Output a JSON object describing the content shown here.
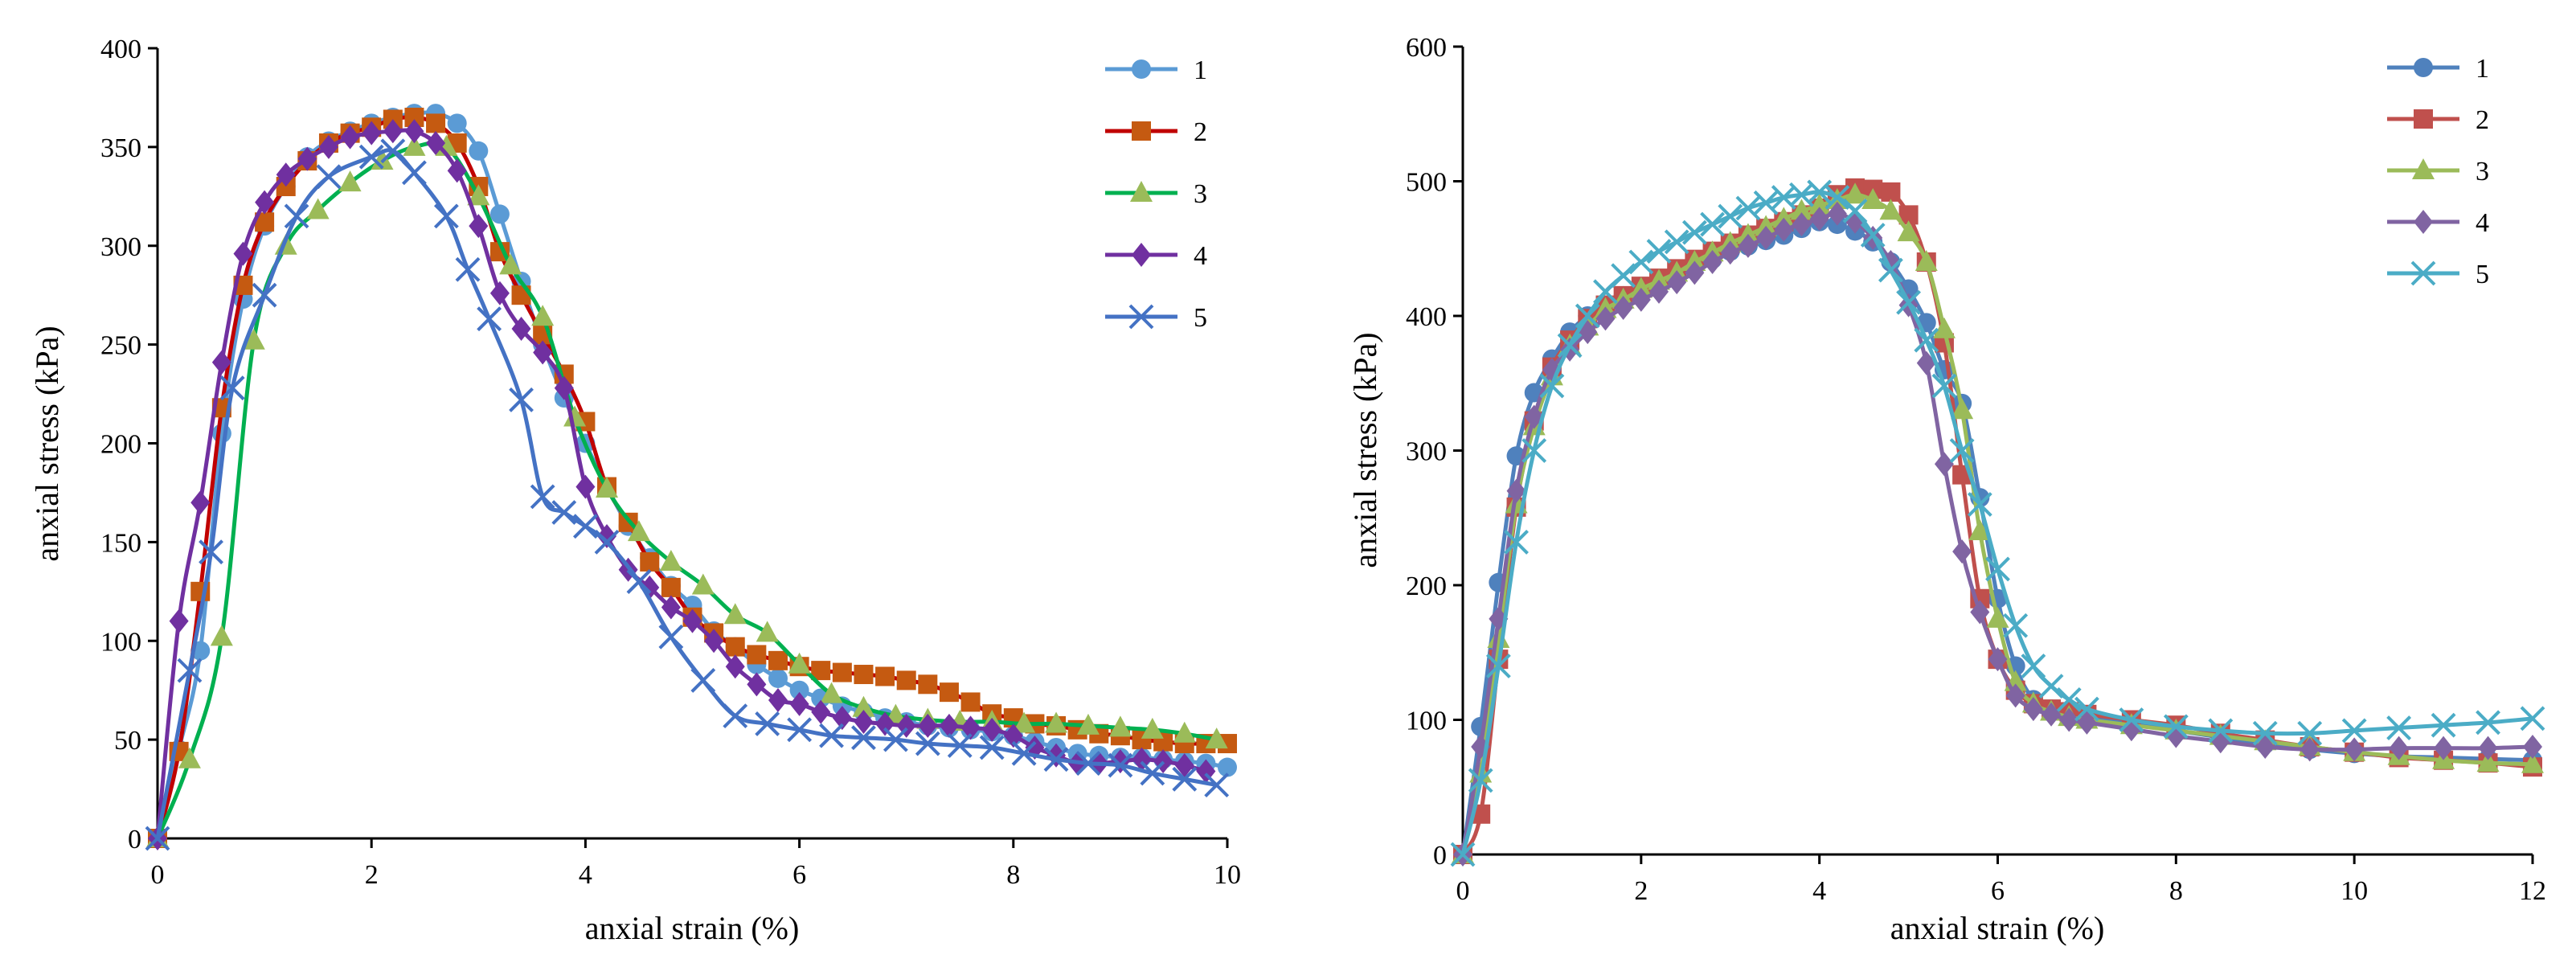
{
  "chart_data": [
    {
      "type": "line",
      "title": "",
      "xlabel": "anxial strain (%)",
      "ylabel": "anxial stress (kPa)",
      "xlim": [
        0,
        10
      ],
      "ylim": [
        0,
        400
      ],
      "xticks": [
        0,
        2,
        4,
        6,
        8,
        10
      ],
      "yticks": [
        0,
        50,
        100,
        150,
        200,
        250,
        300,
        350,
        400
      ],
      "legend_position": "top-right",
      "series": [
        {
          "name": "1",
          "color": "#5b9bd5",
          "marker": "circle",
          "x": [
            0,
            0.2,
            0.4,
            0.6,
            0.8,
            1.0,
            1.2,
            1.4,
            1.6,
            1.8,
            2.0,
            2.2,
            2.4,
            2.6,
            2.8,
            3.0,
            3.2,
            3.4,
            3.6,
            3.8,
            4.0,
            4.2,
            4.4,
            4.6,
            4.8,
            5.0,
            5.2,
            5.4,
            5.6,
            5.8,
            6.0,
            6.2,
            6.4,
            6.6,
            6.8,
            7.0,
            7.2,
            7.4,
            7.6,
            7.8,
            8.0,
            8.2,
            8.4,
            8.6,
            8.8,
            9.0,
            9.2,
            9.4,
            9.6,
            9.8,
            10.0
          ],
          "y": [
            0,
            45,
            95,
            205,
            273,
            310,
            330,
            345,
            353,
            358,
            362,
            365,
            367,
            367,
            362,
            348,
            316,
            282,
            250,
            223,
            200,
            178,
            158,
            142,
            128,
            118,
            105,
            97,
            88,
            81,
            75,
            71,
            67,
            64,
            61,
            59,
            57,
            56,
            55,
            54,
            52,
            49,
            46,
            43,
            42,
            41,
            41,
            40,
            39,
            38,
            36
          ]
        },
        {
          "name": "2",
          "color": "#c55a11",
          "line_color": "#c00000",
          "marker": "square",
          "x": [
            0,
            0.2,
            0.4,
            0.6,
            0.8,
            1.0,
            1.2,
            1.4,
            1.6,
            1.8,
            2.0,
            2.2,
            2.4,
            2.6,
            2.8,
            3.0,
            3.2,
            3.4,
            3.6,
            3.8,
            4.0,
            4.2,
            4.4,
            4.6,
            4.8,
            5.0,
            5.2,
            5.4,
            5.6,
            5.8,
            6.0,
            6.2,
            6.4,
            6.6,
            6.8,
            7.0,
            7.2,
            7.4,
            7.6,
            7.8,
            8.0,
            8.2,
            8.4,
            8.6,
            8.8,
            9.0,
            9.2,
            9.4,
            9.6,
            9.8,
            10.0
          ],
          "y": [
            0,
            44,
            125,
            218,
            280,
            312,
            330,
            343,
            352,
            357,
            360,
            364,
            365,
            362,
            352,
            330,
            297,
            275,
            255,
            235,
            211,
            178,
            160,
            140,
            127,
            112,
            104,
            97,
            93,
            90,
            87,
            85,
            84,
            83,
            82,
            80,
            78,
            74,
            69,
            63,
            61,
            58,
            57,
            55,
            53,
            52,
            50,
            49,
            48,
            48,
            48
          ]
        },
        {
          "name": "3",
          "color": "#9bbb59",
          "line_color": "#00b050",
          "marker": "triangle",
          "x": [
            0,
            0.3,
            0.6,
            0.9,
            1.2,
            1.5,
            1.8,
            2.1,
            2.4,
            2.7,
            3.0,
            3.3,
            3.6,
            3.9,
            4.2,
            4.5,
            4.8,
            5.1,
            5.4,
            5.7,
            6.0,
            6.3,
            6.6,
            6.9,
            7.2,
            7.5,
            7.8,
            8.1,
            8.4,
            8.7,
            9.0,
            9.3,
            9.6,
            9.9
          ],
          "y": [
            0,
            40,
            102,
            252,
            300,
            318,
            332,
            343,
            350,
            350,
            325,
            290,
            264,
            213,
            177,
            155,
            140,
            128,
            113,
            104,
            88,
            73,
            66,
            62,
            60,
            59,
            59,
            58,
            58,
            57,
            56,
            55,
            53,
            50
          ]
        },
        {
          "name": "4",
          "color": "#7030a0",
          "marker": "diamond",
          "x": [
            0,
            0.2,
            0.4,
            0.6,
            0.8,
            1.0,
            1.2,
            1.4,
            1.6,
            1.8,
            2.0,
            2.2,
            2.4,
            2.6,
            2.8,
            3.0,
            3.2,
            3.4,
            3.6,
            3.8,
            4.0,
            4.2,
            4.4,
            4.6,
            4.8,
            5.0,
            5.2,
            5.4,
            5.6,
            5.8,
            6.0,
            6.2,
            6.4,
            6.6,
            6.8,
            7.0,
            7.2,
            7.4,
            7.6,
            7.8,
            8.0,
            8.2,
            8.4,
            8.6,
            8.8,
            9.0,
            9.2,
            9.4,
            9.6,
            9.8
          ],
          "y": [
            0,
            110,
            170,
            241,
            296,
            322,
            336,
            344,
            350,
            355,
            357,
            358,
            358,
            352,
            338,
            310,
            276,
            258,
            246,
            228,
            178,
            153,
            136,
            127,
            117,
            110,
            100,
            87,
            78,
            70,
            68,
            64,
            61,
            59,
            58,
            57,
            57,
            57,
            56,
            55,
            52,
            46,
            42,
            38,
            38,
            39,
            40,
            39,
            37,
            34
          ]
        },
        {
          "name": "5",
          "color": "#4472c4",
          "marker": "x",
          "x": [
            0,
            0.3,
            0.5,
            0.7,
            1.0,
            1.3,
            1.6,
            2.0,
            2.2,
            2.4,
            2.7,
            2.9,
            3.1,
            3.4,
            3.6,
            3.8,
            4.0,
            4.2,
            4.5,
            4.8,
            5.1,
            5.4,
            5.7,
            6.0,
            6.3,
            6.6,
            6.9,
            7.2,
            7.5,
            7.8,
            8.1,
            8.4,
            8.7,
            9.0,
            9.3,
            9.6,
            9.9
          ],
          "y": [
            0,
            85,
            145,
            228,
            275,
            315,
            335,
            345,
            348,
            337,
            315,
            288,
            263,
            222,
            173,
            165,
            158,
            150,
            130,
            102,
            80,
            62,
            58,
            55,
            52,
            51,
            50,
            48,
            47,
            46,
            43,
            40,
            38,
            37,
            33,
            30,
            27
          ]
        }
      ]
    },
    {
      "type": "line",
      "title": "",
      "xlabel": "anxial strain (%)",
      "ylabel": "anxial stress (kPa)",
      "xlim": [
        0,
        12
      ],
      "ylim": [
        0,
        600
      ],
      "xticks": [
        0,
        2,
        4,
        6,
        8,
        10,
        12
      ],
      "yticks": [
        0,
        100,
        200,
        300,
        400,
        500,
        600
      ],
      "legend_position": "top-right",
      "series": [
        {
          "name": "1",
          "color": "#4f81bd",
          "marker": "circle",
          "x": [
            0,
            0.2,
            0.4,
            0.6,
            0.8,
            1.0,
            1.2,
            1.4,
            1.6,
            1.8,
            2.0,
            2.2,
            2.4,
            2.6,
            2.8,
            3.0,
            3.2,
            3.4,
            3.6,
            3.8,
            4.0,
            4.2,
            4.4,
            4.6,
            4.8,
            5.0,
            5.2,
            5.4,
            5.6,
            5.8,
            6.0,
            6.2,
            6.4,
            6.6,
            6.8,
            7.0,
            7.5,
            8.0,
            8.5,
            9.0,
            9.5,
            10.0,
            10.5,
            11.0,
            11.5,
            12.0
          ],
          "y": [
            0,
            95,
            202,
            296,
            343,
            368,
            388,
            400,
            408,
            415,
            420,
            425,
            430,
            436,
            442,
            448,
            452,
            456,
            460,
            465,
            470,
            468,
            463,
            455,
            440,
            420,
            395,
            360,
            335,
            265,
            190,
            140,
            115,
            108,
            104,
            102,
            97,
            92,
            87,
            82,
            78,
            75,
            73,
            72,
            71,
            70
          ]
        },
        {
          "name": "2",
          "color": "#c0504d",
          "marker": "square",
          "x": [
            0,
            0.2,
            0.4,
            0.6,
            0.8,
            1.0,
            1.2,
            1.4,
            1.6,
            1.8,
            2.0,
            2.2,
            2.4,
            2.6,
            2.8,
            3.0,
            3.2,
            3.4,
            3.6,
            3.8,
            4.0,
            4.2,
            4.4,
            4.6,
            4.8,
            5.0,
            5.2,
            5.4,
            5.6,
            5.8,
            6.0,
            6.2,
            6.4,
            6.6,
            6.8,
            7.0,
            7.5,
            8.0,
            8.5,
            9.0,
            9.5,
            10.0,
            10.5,
            11.0,
            11.5,
            12.0
          ],
          "y": [
            0,
            30,
            145,
            258,
            322,
            362,
            382,
            398,
            408,
            415,
            422,
            428,
            435,
            442,
            448,
            454,
            460,
            465,
            470,
            475,
            480,
            490,
            495,
            494,
            492,
            475,
            440,
            380,
            282,
            190,
            145,
            122,
            112,
            108,
            106,
            104,
            100,
            96,
            90,
            85,
            80,
            76,
            72,
            70,
            68,
            65
          ]
        },
        {
          "name": "3",
          "color": "#9bbb59",
          "marker": "triangle",
          "x": [
            0,
            0.2,
            0.4,
            0.6,
            0.8,
            1.0,
            1.2,
            1.4,
            1.6,
            1.8,
            2.0,
            2.2,
            2.4,
            2.6,
            2.8,
            3.0,
            3.2,
            3.4,
            3.6,
            3.8,
            4.0,
            4.2,
            4.4,
            4.6,
            4.8,
            5.0,
            5.2,
            5.4,
            5.6,
            5.8,
            6.0,
            6.2,
            6.4,
            6.6,
            6.8,
            7.0,
            7.5,
            8.0,
            8.5,
            9.0,
            9.5,
            10.0,
            10.5,
            11.0,
            11.5,
            12.0
          ],
          "y": [
            0,
            60,
            160,
            260,
            318,
            355,
            378,
            392,
            405,
            412,
            420,
            426,
            432,
            440,
            447,
            454,
            460,
            466,
            472,
            478,
            482,
            486,
            490,
            486,
            478,
            462,
            440,
            390,
            330,
            240,
            175,
            128,
            112,
            106,
            102,
            100,
            96,
            92,
            88,
            84,
            80,
            76,
            73,
            70,
            68,
            67
          ]
        },
        {
          "name": "4",
          "color": "#8064a2",
          "marker": "diamond",
          "x": [
            0,
            0.2,
            0.4,
            0.6,
            0.8,
            1.0,
            1.2,
            1.4,
            1.6,
            1.8,
            2.0,
            2.2,
            2.4,
            2.6,
            2.8,
            3.0,
            3.2,
            3.4,
            3.6,
            3.8,
            4.0,
            4.2,
            4.4,
            4.6,
            4.8,
            5.0,
            5.2,
            5.4,
            5.6,
            5.8,
            6.0,
            6.2,
            6.4,
            6.6,
            6.8,
            7.0,
            7.5,
            8.0,
            8.5,
            9.0,
            9.5,
            10.0,
            10.5,
            11.0,
            11.5,
            12.0
          ],
          "y": [
            0,
            80,
            175,
            270,
            325,
            360,
            375,
            388,
            398,
            406,
            412,
            418,
            425,
            432,
            440,
            447,
            452,
            458,
            464,
            468,
            472,
            476,
            470,
            458,
            440,
            408,
            365,
            290,
            225,
            180,
            145,
            118,
            108,
            104,
            100,
            98,
            93,
            88,
            84,
            80,
            78,
            78,
            79,
            79,
            79,
            80
          ]
        },
        {
          "name": "5",
          "color": "#4bacc6",
          "marker": "x",
          "x": [
            0,
            0.2,
            0.4,
            0.6,
            0.8,
            1.0,
            1.2,
            1.4,
            1.6,
            1.8,
            2.0,
            2.2,
            2.4,
            2.6,
            2.8,
            3.0,
            3.2,
            3.4,
            3.6,
            3.8,
            4.0,
            4.2,
            4.4,
            4.6,
            4.8,
            5.0,
            5.2,
            5.4,
            5.6,
            5.8,
            6.0,
            6.2,
            6.4,
            6.6,
            6.8,
            7.0,
            7.5,
            8.0,
            8.5,
            9.0,
            9.5,
            10.0,
            10.5,
            11.0,
            11.5,
            12.0
          ],
          "y": [
            0,
            55,
            140,
            232,
            300,
            348,
            378,
            400,
            418,
            430,
            440,
            448,
            455,
            462,
            468,
            474,
            480,
            484,
            488,
            490,
            492,
            488,
            478,
            460,
            434,
            410,
            382,
            348,
            300,
            260,
            212,
            170,
            140,
            125,
            115,
            108,
            100,
            95,
            92,
            90,
            90,
            92,
            94,
            96,
            98,
            101
          ]
        }
      ]
    }
  ]
}
